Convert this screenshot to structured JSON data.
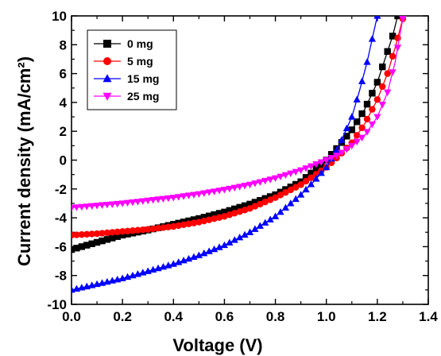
{
  "chart_data": {
    "type": "line",
    "xlabel": "Voltage (V)",
    "ylabel": "Current density (mA/cm²)",
    "xlim": [
      0.0,
      1.4
    ],
    "ylim": [
      -10,
      10
    ],
    "x_ticks": [
      "0.0",
      "0.2",
      "0.4",
      "0.6",
      "0.8",
      "1.0",
      "1.2",
      "1.4"
    ],
    "y_ticks": [
      "-10",
      "-8",
      "-6",
      "-4",
      "-2",
      "0",
      "2",
      "4",
      "6",
      "8",
      "10"
    ],
    "legend_position": "top-left",
    "grid": false,
    "series": [
      {
        "name": "0 mg",
        "color": "#000000",
        "marker": "square",
        "x": [
          0.0,
          0.1,
          0.2,
          0.3,
          0.4,
          0.5,
          0.6,
          0.7,
          0.8,
          0.9,
          1.0,
          1.05,
          1.1,
          1.15,
          1.2,
          1.23,
          1.26,
          1.28
        ],
        "y": [
          -6.2,
          -5.7,
          -5.2,
          -4.85,
          -4.45,
          -4.05,
          -3.6,
          -3.05,
          -2.4,
          -1.5,
          0.0,
          1.0,
          2.1,
          3.5,
          5.4,
          7.0,
          8.6,
          10.0
        ]
      },
      {
        "name": "5 mg",
        "color": "#ff0000",
        "marker": "circle",
        "x": [
          0.0,
          0.1,
          0.2,
          0.3,
          0.4,
          0.5,
          0.6,
          0.7,
          0.8,
          0.9,
          1.0,
          1.05,
          1.1,
          1.15,
          1.2,
          1.24,
          1.27,
          1.3
        ],
        "y": [
          -5.2,
          -5.1,
          -4.95,
          -4.8,
          -4.6,
          -4.3,
          -3.9,
          -3.35,
          -2.6,
          -1.7,
          -0.5,
          0.3,
          1.2,
          2.5,
          4.2,
          6.0,
          7.8,
          9.8
        ]
      },
      {
        "name": "15 mg",
        "color": "#0000ff",
        "marker": "triangle-up",
        "x": [
          0.0,
          0.1,
          0.2,
          0.3,
          0.4,
          0.5,
          0.6,
          0.7,
          0.8,
          0.9,
          0.95,
          1.0,
          1.05,
          1.1,
          1.13,
          1.16,
          1.18,
          1.2
        ],
        "y": [
          -9.0,
          -8.6,
          -8.2,
          -7.7,
          -7.2,
          -6.6,
          -5.9,
          -5.0,
          -3.9,
          -2.4,
          -1.5,
          -0.5,
          1.0,
          3.0,
          4.8,
          6.8,
          8.4,
          10.0
        ]
      },
      {
        "name": "25 mg",
        "color": "#ff00ff",
        "marker": "triangle-down",
        "x": [
          0.0,
          0.1,
          0.2,
          0.3,
          0.4,
          0.5,
          0.6,
          0.7,
          0.8,
          0.9,
          1.0,
          1.05,
          1.1,
          1.15,
          1.2,
          1.24,
          1.27,
          1.3
        ],
        "y": [
          -3.3,
          -3.15,
          -3.0,
          -2.8,
          -2.6,
          -2.35,
          -2.05,
          -1.7,
          -1.25,
          -0.7,
          0.0,
          0.4,
          1.0,
          1.7,
          3.0,
          4.7,
          6.8,
          9.8
        ]
      }
    ]
  }
}
